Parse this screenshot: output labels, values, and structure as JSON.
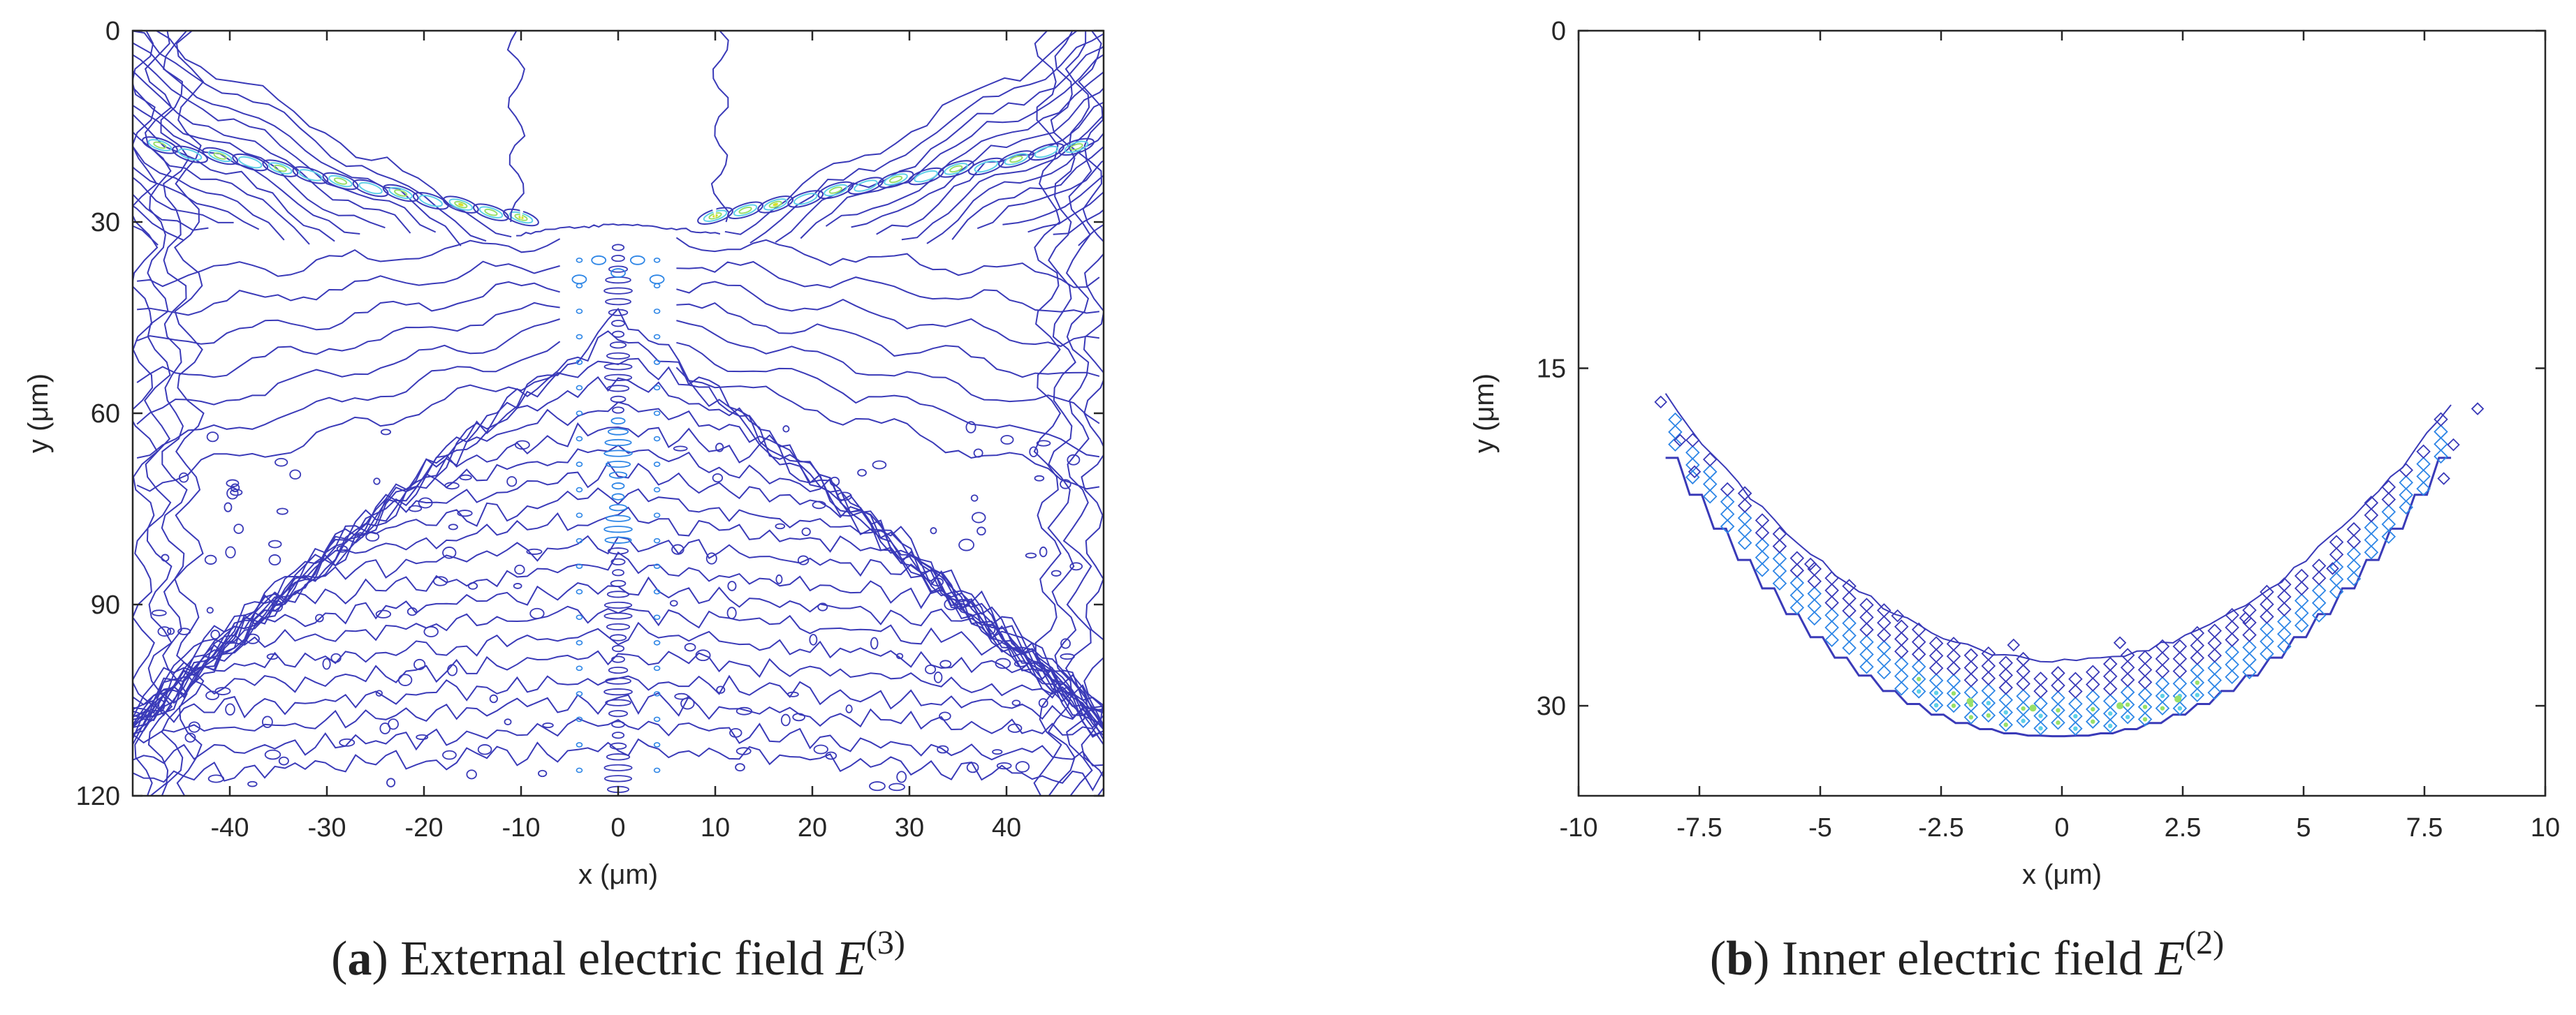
{
  "colors": {
    "background": "#ffffff",
    "axis": "#262626",
    "tick_text": "#262626",
    "contour_low": "#3a3ab8",
    "contour_mid": "#2e86e6",
    "contour_high_a": "#5fd0e8",
    "contour_high_b": "#98e06a",
    "contour_peak": "#d8df2a",
    "caption": "#222222"
  },
  "chart_data": [
    {
      "panel": "a",
      "type": "contour",
      "title": "",
      "xlabel": "x (μm)",
      "ylabel": "y (μm)",
      "xlim": [
        -50,
        50
      ],
      "ylim": [
        0,
        120
      ],
      "y_inverted": true,
      "xticks": [
        -40,
        -30,
        -20,
        -10,
        0,
        10,
        20,
        30,
        40
      ],
      "yticks": [
        0,
        30,
        60,
        90,
        120
      ],
      "grid": false,
      "colormap": "parula",
      "description_note": "Contour plot of the external electric field magnitude",
      "features": {
        "empty_region_x": [
          -10,
          10
        ],
        "empty_region_y": [
          0,
          30
        ],
        "central_band_x": [
          -2,
          2
        ],
        "central_band_y": [
          34,
          120
        ],
        "bright_bands_y": [
          18,
          30
        ]
      },
      "caption": {
        "label": "a",
        "text": "External electric field",
        "symbol": "E",
        "superscript": "(3)"
      }
    },
    {
      "panel": "b",
      "type": "contour",
      "title": "",
      "xlabel": "x (μm)",
      "ylabel": "y (μm)",
      "xlim": [
        -10,
        10
      ],
      "ylim": [
        0,
        34
      ],
      "y_inverted": true,
      "xticks": [
        -10,
        -7.5,
        -5,
        -2.5,
        0,
        2.5,
        5,
        7.5,
        10
      ],
      "yticks": [
        0,
        15,
        30
      ],
      "grid": false,
      "colormap": "parula",
      "description_note": "Contour plot of the inner electric field inside the droplet bottom",
      "features": {
        "arc_x_extent": [
          -8.5,
          8.5
        ],
        "arc_top_y": 16,
        "arc_bottom_y": 31,
        "peak_x": [
          -2,
          2.5
        ],
        "peak_y": 30
      },
      "caption": {
        "label": "b",
        "text": "Inner electric field",
        "symbol": "E",
        "superscript": "(2)"
      }
    }
  ]
}
